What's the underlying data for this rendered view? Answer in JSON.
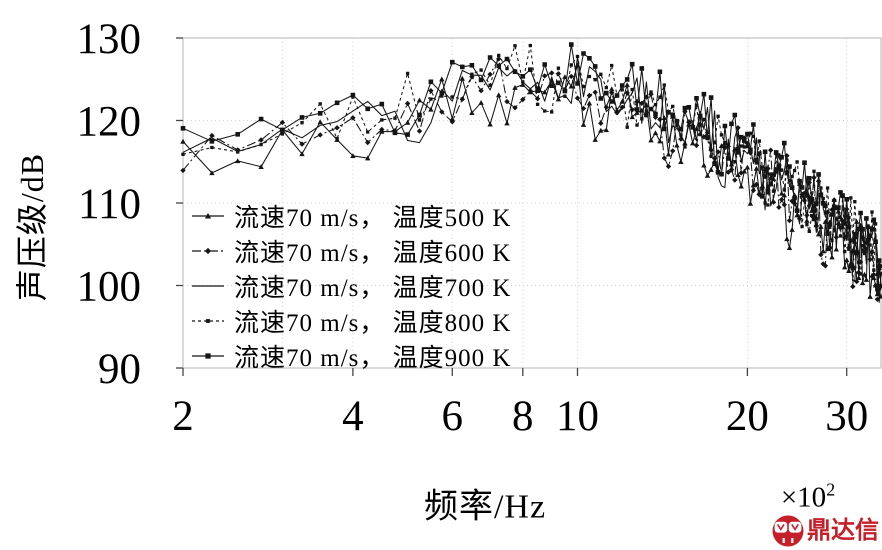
{
  "chart_data": {
    "type": "line",
    "title": "",
    "xlabel": "频率/Hz",
    "ylabel": "声压级/dB",
    "x_multiplier_base": "×10",
    "x_multiplier_exp": "2",
    "x_scale": "log",
    "x_unit_scale": 100,
    "xlim": [
      2,
      34.5
    ],
    "ylim": [
      90,
      130
    ],
    "x_ticks": [
      2,
      4,
      6,
      8,
      10,
      20,
      30
    ],
    "x_gridlines": [
      3,
      4,
      6,
      8,
      10,
      20,
      30
    ],
    "y_ticks": [
      90,
      100,
      110,
      120,
      130
    ],
    "y_gridlines": [
      100,
      110,
      120
    ],
    "grid_on": true,
    "legend_position": "inside-bottom-left",
    "grid_color": "#d4d4d4",
    "frame_color": "#c2c2c2",
    "tick_color": "#444444",
    "line_color": "#151515",
    "series": [
      {
        "label": "流速70 m/s， 温度500 K",
        "marker": "triangle",
        "dash": "",
        "offset_db": -1.3,
        "phase17": 0,
        "phase13": 0
      },
      {
        "label": "流速70 m/s， 温度600 K",
        "marker": "diamond",
        "dash": "9 3 2 3",
        "offset_db": -0.5,
        "phase17": 4,
        "phase13": 3
      },
      {
        "label": "流速70 m/s， 温度700 K",
        "marker": "none",
        "dash": "",
        "offset_db": 0.2,
        "phase17": 8,
        "phase13": 6
      },
      {
        "label": "流速70 m/s， 温度800 K",
        "marker": "dot",
        "dash": "3 3",
        "offset_db": 0.9,
        "phase17": 12,
        "phase13": 9
      },
      {
        "label": "流速70 m/s， 温度900 K",
        "marker": "square",
        "dash": "",
        "offset_db": 1.6,
        "phase17": 15,
        "phase13": 11
      }
    ],
    "spectrum": {
      "freq_start": 200,
      "freq_step": 25,
      "freq_end": 3450,
      "peak_clamp_db": 129.8,
      "envelope": [
        [
          200,
          116.5
        ],
        [
          300,
          117.2
        ],
        [
          400,
          118.8
        ],
        [
          500,
          121.0
        ],
        [
          650,
          123.6
        ],
        [
          800,
          124.6
        ],
        [
          1000,
          123.8
        ],
        [
          1200,
          122.3
        ],
        [
          1500,
          119.2
        ],
        [
          2000,
          114.8
        ],
        [
          2500,
          110.2
        ],
        [
          3000,
          105.8
        ],
        [
          3450,
          101.8
        ]
      ],
      "noise17": [
        2.6,
        -1.8,
        0.9,
        3.4,
        -2.9,
        -0.4,
        1.7,
        -3.2,
        2.2,
        0.3,
        -2.4,
        3.0,
        -1.1,
        1.3,
        -3.6,
        2.8,
        -0.7
      ],
      "noise13": [
        1.9,
        -2.6,
        0.4,
        -1.2,
        3.1,
        -0.2,
        -3.3,
        2.3,
        0.8,
        -1.9,
        2.7,
        -0.9,
        1.1
      ],
      "gain": [
        [
          200,
          1.0
        ],
        [
          600,
          1.3
        ],
        [
          1200,
          1.3
        ],
        [
          2000,
          1.5
        ],
        [
          3450,
          1.7
        ]
      ]
    }
  },
  "watermark": {
    "text": "鼎达信",
    "color": "#c5202a"
  }
}
